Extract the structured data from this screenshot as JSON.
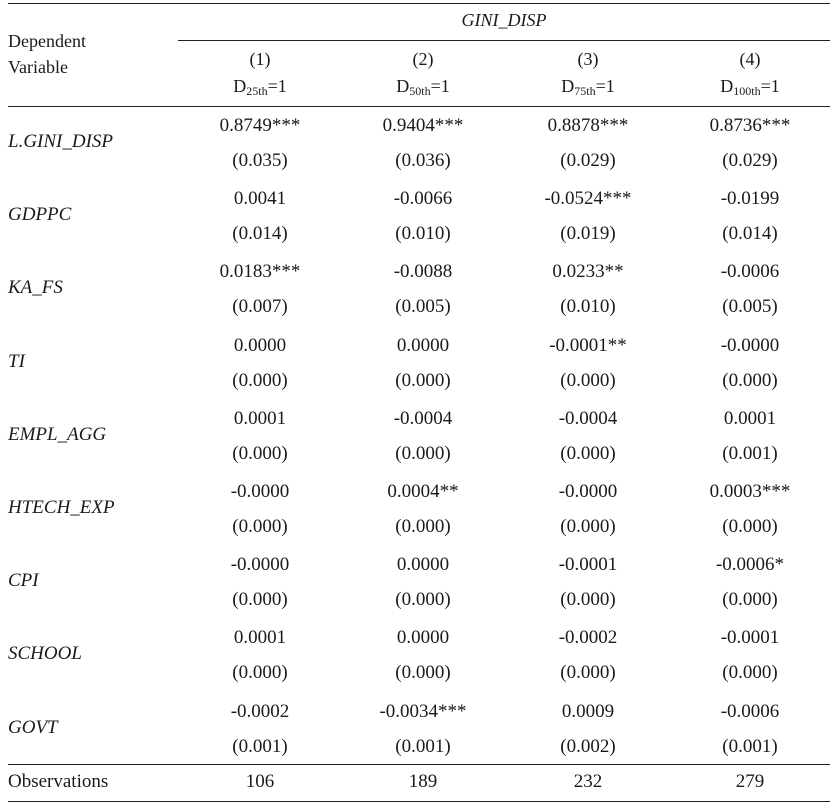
{
  "header": {
    "dependent_label_line1": "Dependent",
    "dependent_label_line2": "Variable",
    "group_title": "GINI_DISP",
    "columns": [
      {
        "num": "(1)",
        "d_main": "D",
        "d_sub": "25th",
        "d_eq": "=1"
      },
      {
        "num": "(2)",
        "d_main": "D",
        "d_sub": "50th",
        "d_eq": "=1"
      },
      {
        "num": "(3)",
        "d_main": "D",
        "d_sub": "75th",
        "d_eq": "=1"
      },
      {
        "num": "(4)",
        "d_main": "D",
        "d_sub": "100th",
        "d_eq": "=1"
      }
    ]
  },
  "rows": [
    {
      "name": "L.GINI_DISP",
      "coef": [
        "0.8749***",
        "0.9404***",
        "0.8878***",
        "0.8736***"
      ],
      "se": [
        "(0.035)",
        "(0.036)",
        "(0.029)",
        "(0.029)"
      ]
    },
    {
      "name": "GDPPC",
      "coef": [
        "0.0041",
        "-0.0066",
        "-0.0524***",
        "-0.0199"
      ],
      "se": [
        "(0.014)",
        "(0.010)",
        "(0.019)",
        "(0.014)"
      ]
    },
    {
      "name": "KA_FS",
      "coef": [
        "0.0183***",
        "-0.0088",
        "0.0233**",
        "-0.0006"
      ],
      "se": [
        "(0.007)",
        "(0.005)",
        "(0.010)",
        "(0.005)"
      ]
    },
    {
      "name": "TI",
      "coef": [
        "0.0000",
        "0.0000",
        "-0.0001**",
        "-0.0000"
      ],
      "se": [
        "(0.000)",
        "(0.000)",
        "(0.000)",
        "(0.000)"
      ]
    },
    {
      "name": "EMPL_AGG",
      "coef": [
        "0.0001",
        "-0.0004",
        "-0.0004",
        "0.0001"
      ],
      "se": [
        "(0.000)",
        "(0.000)",
        "(0.000)",
        "(0.001)"
      ]
    },
    {
      "name": "HTECH_EXP",
      "coef": [
        "-0.0000",
        "0.0004**",
        "-0.0000",
        "0.0003***"
      ],
      "se": [
        "(0.000)",
        "(0.000)",
        "(0.000)",
        "(0.000)"
      ]
    },
    {
      "name": "CPI",
      "coef": [
        "-0.0000",
        "0.0000",
        "-0.0001",
        "-0.0006*"
      ],
      "se": [
        "(0.000)",
        "(0.000)",
        "(0.000)",
        "(0.000)"
      ]
    },
    {
      "name": "SCHOOL",
      "coef": [
        "0.0001",
        "0.0000",
        "-0.0002",
        "-0.0001"
      ],
      "se": [
        "(0.000)",
        "(0.000)",
        "(0.000)",
        "(0.000)"
      ]
    },
    {
      "name": "GOVT",
      "coef": [
        "-0.0002",
        "-0.0034***",
        "0.0009",
        "-0.0006"
      ],
      "se": [
        "(0.001)",
        "(0.001)",
        "(0.002)",
        "(0.001)"
      ]
    }
  ],
  "footer": {
    "label": "Observations",
    "values": [
      "106",
      "189",
      "232",
      "279"
    ]
  }
}
